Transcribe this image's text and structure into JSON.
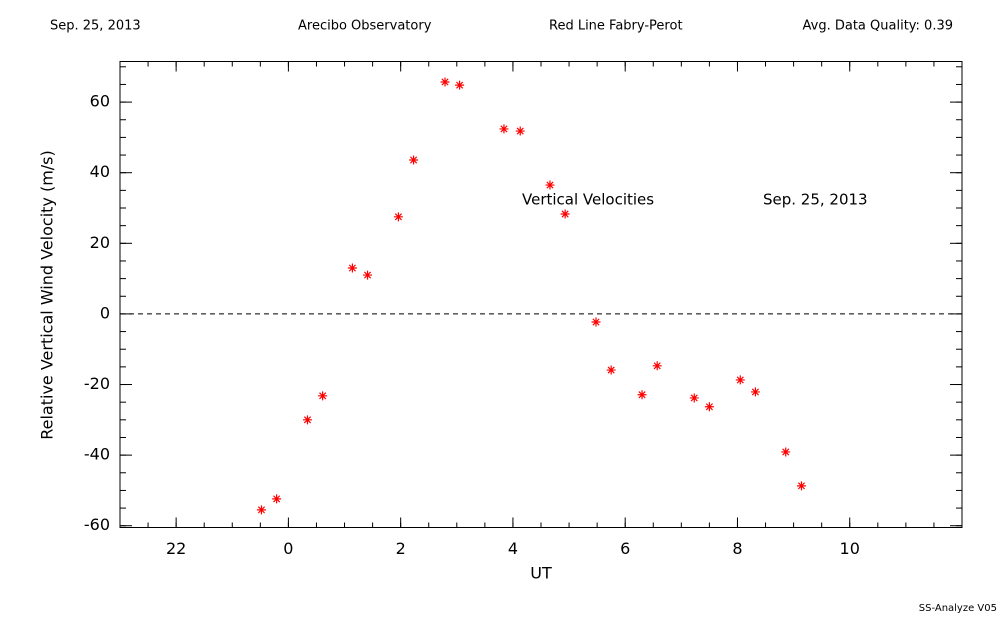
{
  "chart_data": {
    "type": "scatter",
    "header": [
      "Sep. 25, 2013",
      "Arecibo Observatory",
      "Red Line Fabry-Perot",
      "Avg. Data Quality: 0.39"
    ],
    "annotations": [
      "Vertical Velocities",
      "Sep. 25, 2013"
    ],
    "footer": "SS-Analyze V05",
    "x_label": "UT",
    "y_label": "Relative Vertical Wind Velocity (m/s)",
    "xlim": [
      -3,
      12
    ],
    "ylim": [
      -60.5,
      71.5
    ],
    "xticks": [
      {
        "value": -2,
        "label": "22"
      },
      0,
      2,
      4,
      6,
      8,
      10
    ],
    "yticks": [
      -60,
      -40,
      -20,
      0,
      20,
      40,
      60
    ],
    "hline": 0,
    "series": [
      {
        "color": "#ff0000",
        "x": [
          -0.48,
          -0.21,
          0.34,
          0.61,
          1.14,
          1.41,
          1.96,
          2.23,
          2.79,
          3.05,
          3.84,
          4.13,
          4.66,
          4.93,
          5.48,
          5.75,
          6.3,
          6.57,
          7.23,
          7.5,
          8.05,
          8.32,
          8.86,
          9.14
        ],
        "values": [
          -55.5,
          -52.4,
          -30.0,
          -23.2,
          13.0,
          11.0,
          27.5,
          43.6,
          65.7,
          64.8,
          52.4,
          51.8,
          36.5,
          28.3,
          -2.3,
          -15.9,
          -22.9,
          -14.7,
          -23.8,
          -26.3,
          -18.7,
          -22.1,
          -39.1,
          -48.7
        ]
      }
    ]
  }
}
